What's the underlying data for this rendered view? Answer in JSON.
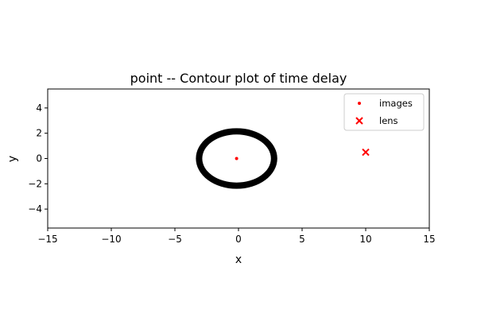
{
  "chart_data": {
    "type": "scatter",
    "title": "point -- Contour plot of time delay",
    "xlabel": "x",
    "ylabel": "y",
    "xlim": [
      -15,
      15
    ],
    "ylim": [
      -5.5,
      5.5
    ],
    "xticks": [
      -15,
      -10,
      -5,
      0,
      5,
      10,
      15
    ],
    "xtick_labels": [
      "−15",
      "−10",
      "−5",
      "0",
      "5",
      "10",
      "15"
    ],
    "yticks": [
      -4,
      -2,
      0,
      2,
      4
    ],
    "ytick_labels": [
      "−4",
      "−2",
      "0",
      "2",
      "4"
    ],
    "grid": false,
    "legend_position": "top-right",
    "contour": {
      "center": [
        -0.15,
        0
      ],
      "rx_outer": 3.2,
      "rx_inner": 2.7,
      "ry_outer": 2.4,
      "ry_inner": 1.9,
      "color": "#000000"
    },
    "series": [
      {
        "name": "images",
        "marker": "dot",
        "color": "#ff0000",
        "points": [
          {
            "x": -0.15,
            "y": 0.0
          }
        ]
      },
      {
        "name": "lens",
        "marker": "x",
        "color": "#ff0000",
        "points": [
          {
            "x": 10.0,
            "y": 0.5
          }
        ]
      }
    ]
  }
}
